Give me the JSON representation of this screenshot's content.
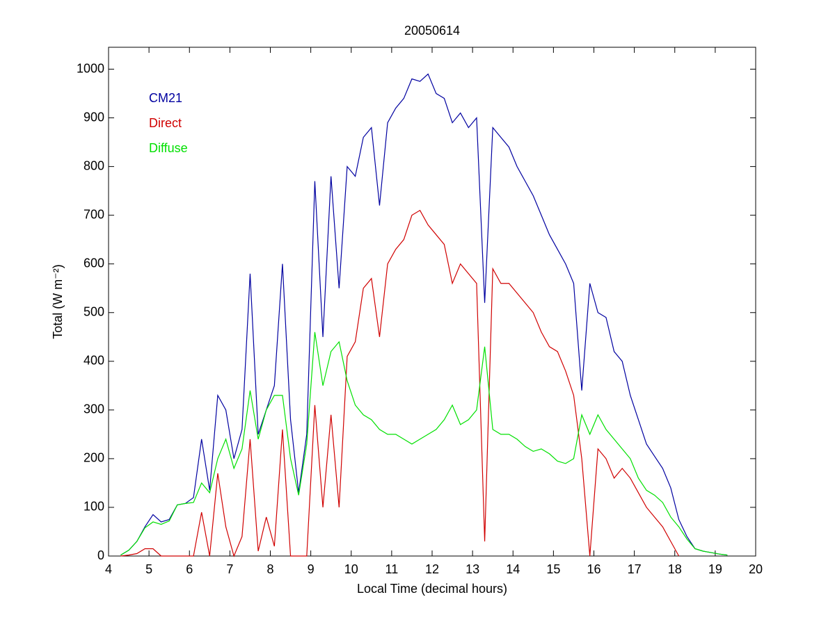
{
  "chart_data": {
    "type": "line",
    "title": "20050614",
    "xlabel": "Local Time (decimal hours)",
    "ylabel": "Total (W m⁻²)",
    "xlim": [
      4,
      20
    ],
    "xticks": [
      4,
      5,
      6,
      7,
      8,
      9,
      10,
      11,
      12,
      13,
      14,
      15,
      16,
      17,
      18,
      19,
      20
    ],
    "ylim": [
      0,
      1045
    ],
    "yticks": [
      0,
      100,
      200,
      300,
      400,
      500,
      600,
      700,
      800,
      900,
      1000
    ],
    "grid": false,
    "x": [
      4.3,
      4.5,
      4.7,
      4.9,
      5.1,
      5.3,
      5.5,
      5.7,
      5.9,
      6.1,
      6.3,
      6.5,
      6.7,
      6.9,
      7.1,
      7.3,
      7.5,
      7.7,
      7.9,
      8.1,
      8.3,
      8.5,
      8.7,
      8.9,
      9.1,
      9.3,
      9.5,
      9.7,
      9.9,
      10.1,
      10.3,
      10.5,
      10.7,
      10.9,
      11.1,
      11.3,
      11.5,
      11.7,
      11.9,
      12.1,
      12.3,
      12.5,
      12.7,
      12.9,
      13.1,
      13.3,
      13.5,
      13.7,
      13.9,
      14.1,
      14.3,
      14.5,
      14.7,
      14.9,
      15.1,
      15.3,
      15.5,
      15.7,
      15.9,
      16.1,
      16.3,
      16.5,
      16.7,
      16.9,
      17.1,
      17.3,
      17.5,
      17.7,
      17.9,
      18.1,
      18.3,
      18.5,
      18.7,
      18.9,
      19.1,
      19.3
    ],
    "series": [
      {
        "name": "CM21",
        "color": "#0000a0",
        "values": [
          2,
          12,
          30,
          60,
          85,
          70,
          75,
          105,
          108,
          120,
          240,
          135,
          330,
          300,
          200,
          260,
          580,
          250,
          300,
          350,
          600,
          280,
          130,
          250,
          770,
          450,
          780,
          550,
          800,
          780,
          860,
          880,
          720,
          890,
          920,
          940,
          980,
          975,
          990,
          950,
          940,
          890,
          910,
          880,
          900,
          520,
          880,
          860,
          840,
          800,
          770,
          740,
          700,
          660,
          630,
          600,
          560,
          340,
          560,
          500,
          490,
          420,
          400,
          330,
          280,
          230,
          205,
          180,
          140,
          75,
          40,
          15,
          10,
          7,
          4,
          2
        ]
      },
      {
        "name": "Direct",
        "color": "#d00000",
        "values": [
          0,
          2,
          5,
          15,
          15,
          0,
          0,
          0,
          0,
          0,
          90,
          0,
          170,
          60,
          0,
          40,
          240,
          10,
          80,
          20,
          260,
          0,
          0,
          0,
          310,
          100,
          290,
          100,
          410,
          440,
          550,
          570,
          450,
          600,
          630,
          650,
          700,
          710,
          680,
          660,
          640,
          560,
          600,
          580,
          560,
          30,
          590,
          560,
          560,
          540,
          520,
          500,
          460,
          430,
          420,
          380,
          330,
          200,
          0,
          220,
          200,
          160,
          180,
          160,
          130,
          100,
          80,
          60,
          30,
          0,
          null,
          null,
          null,
          null,
          null,
          null
        ]
      },
      {
        "name": "Diffuse",
        "color": "#00e000",
        "values": [
          2,
          12,
          30,
          58,
          70,
          65,
          72,
          105,
          108,
          110,
          150,
          130,
          200,
          240,
          180,
          220,
          340,
          240,
          300,
          330,
          330,
          200,
          125,
          230,
          460,
          350,
          420,
          440,
          360,
          310,
          290,
          280,
          260,
          250,
          250,
          240,
          230,
          240,
          250,
          260,
          280,
          310,
          270,
          280,
          300,
          430,
          260,
          250,
          250,
          240,
          225,
          215,
          220,
          210,
          195,
          190,
          200,
          290,
          250,
          290,
          260,
          240,
          220,
          200,
          160,
          135,
          125,
          110,
          80,
          60,
          35,
          15,
          10,
          7,
          4,
          2
        ]
      }
    ]
  }
}
